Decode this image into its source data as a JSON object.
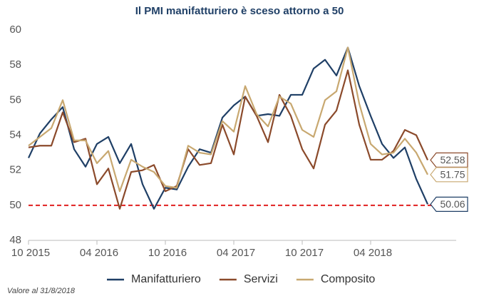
{
  "chart_data": {
    "type": "line",
    "title": "Il PMI manifatturiero è sceso attorno a 50",
    "note": "Valore al 31/8/2018",
    "categories": [
      "10 2015",
      null,
      null,
      null,
      null,
      null,
      "04 2016",
      null,
      null,
      null,
      null,
      null,
      "10 2016",
      null,
      null,
      null,
      null,
      null,
      "04 2017",
      null,
      null,
      null,
      null,
      null,
      "10 2017",
      null,
      null,
      null,
      null,
      null,
      "04 2018",
      null,
      null,
      null,
      null,
      null
    ],
    "series": [
      {
        "name": "Manifatturiero",
        "color": "#1f3f66",
        "values": [
          52.7,
          54.1,
          54.9,
          55.6,
          53.2,
          52.2,
          53.5,
          53.9,
          52.4,
          53.5,
          51.2,
          49.8,
          51.0,
          50.9,
          52.2,
          53.2,
          53.0,
          55.0,
          55.7,
          56.2,
          55.1,
          55.2,
          55.1,
          56.3,
          56.3,
          57.8,
          58.3,
          57.4,
          59.0,
          56.8,
          55.1,
          53.5,
          52.7,
          53.3,
          51.5,
          50.06
        ]
      },
      {
        "name": "Servizi",
        "color": "#8b4a2b",
        "values": [
          53.3,
          53.4,
          53.4,
          55.3,
          53.6,
          53.8,
          51.2,
          52.1,
          49.8,
          51.9,
          52.0,
          52.3,
          50.8,
          51.1,
          53.2,
          52.3,
          52.4,
          54.6,
          52.9,
          56.2,
          55.1,
          53.6,
          56.3,
          55.1,
          53.2,
          52.1,
          54.6,
          55.4,
          57.7,
          54.6,
          52.6,
          52.6,
          53.1,
          54.3,
          54.0,
          52.58
        ]
      },
      {
        "name": "Composito",
        "color": "#c8a870",
        "values": [
          53.4,
          53.9,
          54.4,
          56.0,
          53.7,
          53.7,
          52.4,
          53.1,
          50.8,
          52.6,
          52.2,
          51.9,
          51.1,
          51.0,
          53.4,
          53.0,
          52.9,
          54.8,
          54.2,
          56.8,
          55.2,
          54.5,
          56.2,
          55.8,
          54.3,
          53.9,
          56.0,
          56.5,
          59.0,
          55.8,
          53.5,
          52.9,
          53.0,
          53.8,
          53.0,
          51.75
        ]
      }
    ],
    "ylim": [
      48,
      60
    ],
    "yticks": [
      48,
      50,
      52,
      54,
      56,
      58,
      60
    ],
    "reference_line": {
      "value": 50,
      "color": "#e02020"
    },
    "grid": false
  }
}
